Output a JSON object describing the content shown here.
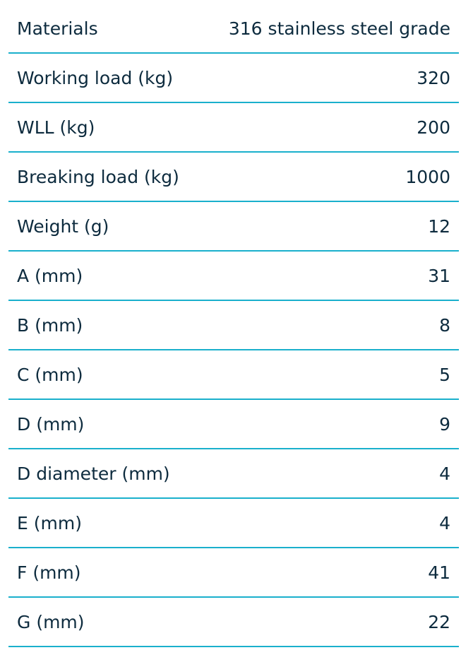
{
  "specs": {
    "rows": [
      {
        "label": "Materials",
        "value": "316 stainless steel grade"
      },
      {
        "label": "Working load (kg)",
        "value": "320"
      },
      {
        "label": "WLL (kg)",
        "value": "200"
      },
      {
        "label": "Breaking load (kg)",
        "value": "1000"
      },
      {
        "label": "Weight (g)",
        "value": "12"
      },
      {
        "label": "A (mm)",
        "value": "31"
      },
      {
        "label": "B (mm)",
        "value": "8"
      },
      {
        "label": "C (mm)",
        "value": "5"
      },
      {
        "label": "D (mm)",
        "value": "9"
      },
      {
        "label": "D diameter (mm)",
        "value": "4"
      },
      {
        "label": "E (mm)",
        "value": "4"
      },
      {
        "label": "F (mm)",
        "value": "41"
      },
      {
        "label": "G (mm)",
        "value": "22"
      }
    ]
  },
  "colors": {
    "text": "#0d2b3e",
    "divider": "#1ab0cc"
  }
}
